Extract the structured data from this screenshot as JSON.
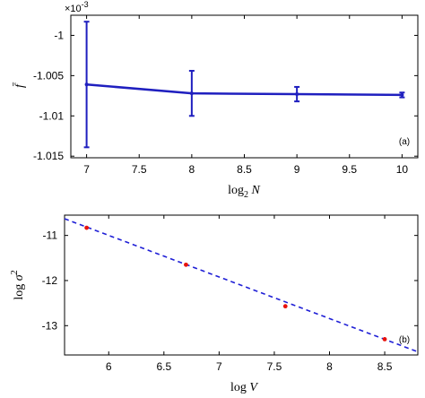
{
  "chart_data": [
    {
      "type": "line",
      "panel_label": "(a)",
      "multiplier_label": "×10",
      "multiplier_exponent": "-3",
      "xlabel_base": "log",
      "xlabel_sub": "2",
      "xlabel_var": "N",
      "ylabel": "f̄",
      "xlim": [
        6.85,
        10.15
      ],
      "ylim": [
        -1.0152,
        -0.9975
      ],
      "xticks": [
        7,
        7.5,
        8,
        8.5,
        9,
        9.5,
        10
      ],
      "xtick_labels": [
        "7",
        "7.5",
        "8",
        "8.5",
        "9",
        "9.5",
        "10"
      ],
      "yticks": [
        -1.0,
        -1.005,
        -1.01,
        -1.015
      ],
      "ytick_labels": [
        "-1",
        "-1.005",
        "-1.01",
        "-1.015"
      ],
      "color": "#1f1fbf",
      "series": [
        {
          "x": [
            7,
            8,
            9,
            10
          ],
          "y": [
            -1.0061,
            -1.0072,
            -1.0073,
            -1.0074
          ],
          "err": [
            0.0078,
            0.0028,
            0.0009,
            0.0003
          ]
        }
      ]
    },
    {
      "type": "scatter",
      "panel_label": "(b)",
      "xlabel_base": "log",
      "xlabel_var": "V",
      "ylabel_base": "log",
      "ylabel_var": "σ",
      "ylabel_exp": "2",
      "xlim": [
        5.6,
        8.8
      ],
      "ylim": [
        -13.65,
        -10.55
      ],
      "xticks": [
        6,
        6.5,
        7,
        7.5,
        8,
        8.5
      ],
      "xtick_labels": [
        "6",
        "6.5",
        "7",
        "7.5",
        "8",
        "8.5"
      ],
      "yticks": [
        -11,
        -12,
        -13
      ],
      "ytick_labels": [
        "-11",
        "-12",
        "-13"
      ],
      "points_color": "#e8120c",
      "fit_color": "#1f1fd6",
      "points": {
        "x": [
          5.8,
          6.7,
          7.6,
          8.5
        ],
        "y": [
          -10.83,
          -11.65,
          -12.57,
          -13.3
        ]
      },
      "fit_line": {
        "x": [
          5.6,
          8.8
        ],
        "y": [
          -10.63,
          -13.58
        ]
      }
    }
  ]
}
